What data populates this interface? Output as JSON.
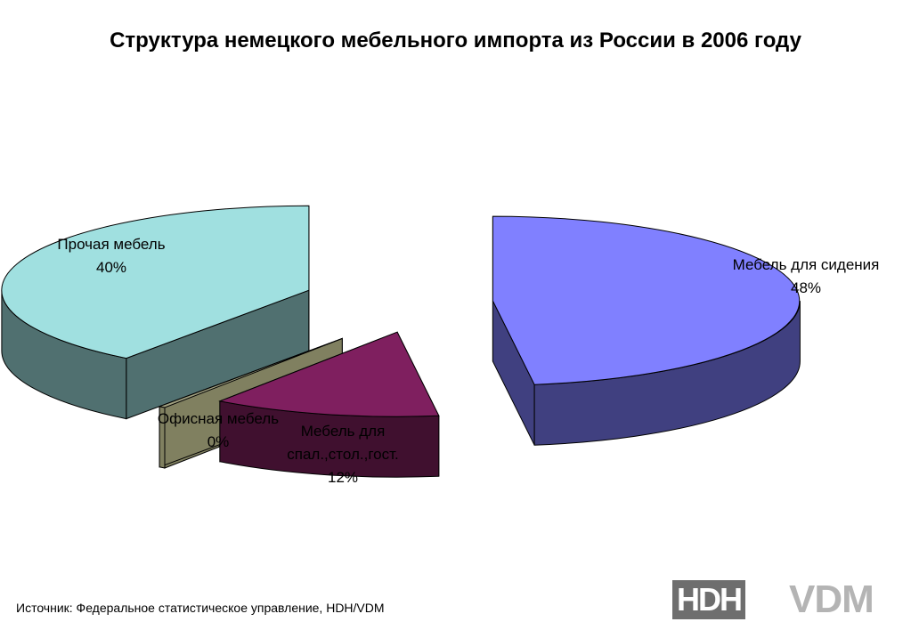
{
  "chart_data": {
    "type": "pie",
    "title": "Структура немецкого мебельного импорта из России в 2006 году",
    "slices": [
      {
        "name": "Мебель для сидения",
        "value": 48,
        "label_lines": [
          "Мебель для сидения",
          "48%"
        ],
        "top_color": "#8080ff",
        "side_color": "#404080"
      },
      {
        "name": "Мебель для спал.,стол.,гост.",
        "value": 12,
        "label_lines": [
          "Мебель для",
          "спал.,стол.,гост.",
          "12%"
        ],
        "top_color": "#7f1f5f",
        "side_color": "#40102f"
      },
      {
        "name": "Офисная мебель",
        "value": 0,
        "label_lines": [
          "Офисная мебель",
          "0%"
        ],
        "top_color": "#a0a080",
        "side_color": "#808060"
      },
      {
        "name": "Прочая мебель",
        "value": 40,
        "label_lines": [
          "Прочая мебель",
          "40%"
        ],
        "top_color": "#a0e0e0",
        "side_color": "#507070"
      }
    ]
  },
  "footer": {
    "source": "Источник: Федеральное статистическое управление, HDH/VDM"
  },
  "logos": {
    "hdh": "HDH",
    "vdm": "VDM"
  }
}
